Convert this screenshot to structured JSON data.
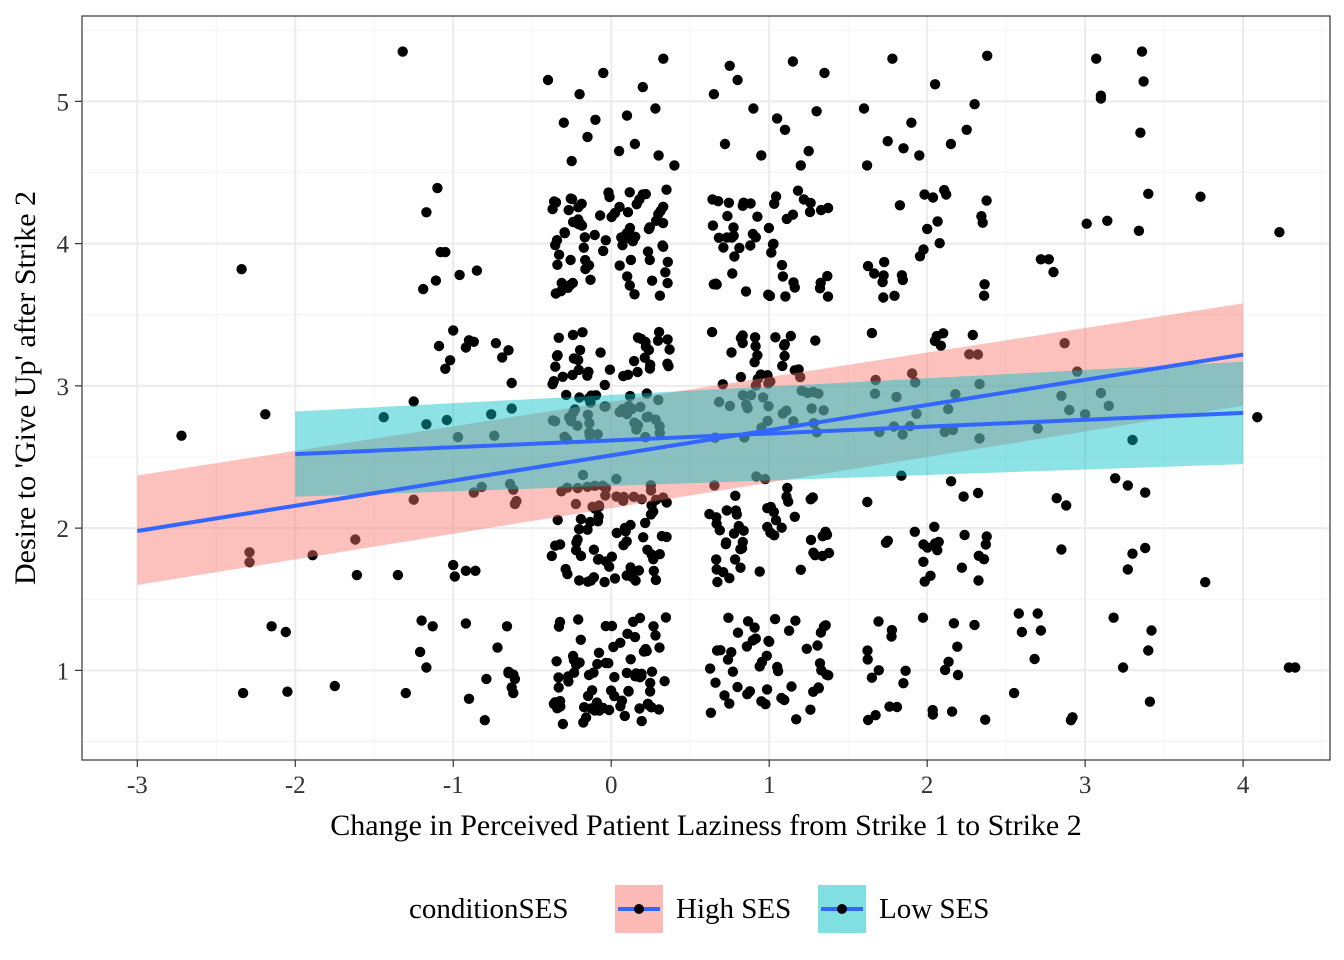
{
  "chart_data": {
    "type": "scatter",
    "xlabel": "Change in Perceived Patient Laziness from Strike 1 to Strike 2",
    "ylabel": "Desire to 'Give Up' after Strike 2",
    "xlim": [
      -3.35,
      4.55
    ],
    "ylim": [
      0.37,
      5.6
    ],
    "x_ticks": [
      -3,
      -2,
      -1,
      0,
      1,
      2,
      3,
      4
    ],
    "x_tick_labels": [
      "-3",
      "-2",
      "-1",
      "0",
      "1",
      "2",
      "3",
      "4"
    ],
    "y_ticks": [
      1,
      2,
      3,
      4,
      5
    ],
    "y_tick_labels": [
      "1",
      "2",
      "3",
      "4",
      "5"
    ],
    "grid": true,
    "legend": {
      "title": "conditionSES",
      "position": "bottom",
      "entries": [
        "High SES",
        "Low SES"
      ]
    },
    "colors": {
      "points": "#000000",
      "line": "#3366FF",
      "high_ses_band": "#F8766D",
      "low_ses_band": "#00BFC4",
      "panel_border": "#333333",
      "grid_major": "#EBEBEB",
      "grid_minor": "#F4F4F4"
    },
    "series": [
      {
        "name": "High SES",
        "fit": {
          "x": [
            -3,
            4
          ],
          "y": [
            1.98,
            3.22
          ]
        },
        "ci": {
          "x": [
            -3,
            4
          ],
          "lower": [
            1.6,
            2.86
          ],
          "upper": [
            2.37,
            3.58
          ]
        }
      },
      {
        "name": "Low SES",
        "fit": {
          "x": [
            -2,
            4
          ],
          "y": [
            2.52,
            2.81
          ]
        },
        "ci": {
          "x": [
            -2,
            4
          ],
          "lower": [
            2.22,
            2.45
          ],
          "upper": [
            2.82,
            3.17
          ]
        }
      }
    ],
    "points": [
      [
        -2.72,
        2.65
      ],
      [
        -2.34,
        3.82
      ],
      [
        -2.29,
        1.83
      ],
      [
        -2.29,
        1.76
      ],
      [
        -2.33,
        0.84
      ],
      [
        -2.19,
        2.8
      ],
      [
        -2.15,
        1.31
      ],
      [
        -2.06,
        1.27
      ],
      [
        -2.05,
        0.85
      ],
      [
        -1.89,
        1.81
      ],
      [
        -1.75,
        0.89
      ],
      [
        -1.62,
        1.92
      ],
      [
        -1.61,
        1.67
      ],
      [
        -1.44,
        2.78
      ],
      [
        -1.32,
        5.35
      ],
      [
        -1.35,
        1.67
      ],
      [
        -1.3,
        0.84
      ],
      [
        -1.25,
        2.2
      ],
      [
        -1.25,
        2.89
      ],
      [
        -1.21,
        1.13
      ],
      [
        -1.17,
        2.73
      ],
      [
        -1.19,
        3.68
      ],
      [
        -1.17,
        4.22
      ],
      [
        -1.2,
        1.35
      ],
      [
        -1.17,
        1.02
      ],
      [
        -1.13,
        1.31
      ],
      [
        -1.11,
        3.74
      ],
      [
        -1.1,
        4.39
      ],
      [
        -1.09,
        3.28
      ],
      [
        -1.08,
        3.94
      ],
      [
        -1.05,
        3.94
      ],
      [
        -1.04,
        2.76
      ],
      [
        -1.02,
        3.18
      ],
      [
        -1.0,
        3.39
      ],
      [
        -1.0,
        1.74
      ],
      [
        -0.99,
        1.66
      ],
      [
        -1.05,
        3.12
      ],
      [
        -0.97,
        2.64
      ],
      [
        -0.96,
        3.78
      ],
      [
        -0.92,
        3.27
      ],
      [
        -0.9,
        3.32
      ],
      [
        -0.92,
        1.33
      ],
      [
        -0.92,
        1.7
      ],
      [
        -0.87,
        2.25
      ],
      [
        -0.85,
        3.81
      ],
      [
        -0.9,
        0.8
      ],
      [
        -0.86,
        1.7
      ],
      [
        -0.87,
        3.31
      ],
      [
        -0.82,
        2.29
      ],
      [
        -0.8,
        0.65
      ],
      [
        -0.79,
        0.94
      ],
      [
        -0.76,
        2.8
      ],
      [
        -0.73,
        3.3
      ],
      [
        -0.74,
        2.65
      ],
      [
        -0.72,
        1.16
      ],
      [
        -0.69,
        3.2
      ],
      [
        -0.65,
        3.25
      ],
      [
        -0.65,
        0.98
      ],
      [
        -0.63,
        2.84
      ],
      [
        -0.64,
        2.31
      ],
      [
        -0.62,
        2.27
      ],
      [
        -0.61,
        2.17
      ],
      [
        -0.62,
        0.84
      ],
      [
        -0.63,
        3.02
      ],
      [
        -0.63,
        0.88
      ],
      [
        -0.61,
        0.94
      ],
      [
        -0.66,
        1.31
      ],
      [
        -0.65,
        0.99
      ],
      [
        -0.6,
        2.19
      ],
      [
        -0.62,
        0.97
      ],
      [
        2.7,
        1.4
      ],
      [
        2.72,
        1.28
      ],
      [
        2.68,
        1.08
      ],
      [
        2.7,
        2.7
      ],
      [
        2.72,
        3.89
      ],
      [
        2.77,
        3.89
      ],
      [
        2.8,
        3.8
      ],
      [
        2.82,
        2.21
      ],
      [
        2.85,
        2.93
      ],
      [
        2.85,
        1.85
      ],
      [
        2.88,
        2.16
      ],
      [
        2.87,
        3.3
      ],
      [
        2.9,
        2.83
      ],
      [
        2.91,
        0.65
      ],
      [
        2.92,
        0.67
      ],
      [
        3.01,
        4.14
      ],
      [
        3.07,
        5.3
      ],
      [
        3.1,
        5.02
      ],
      [
        3.1,
        5.04
      ],
      [
        3.14,
        4.16
      ],
      [
        3.15,
        2.86
      ],
      [
        3.18,
        1.37
      ],
      [
        3.24,
        1.02
      ],
      [
        3.27,
        1.71
      ],
      [
        3.27,
        2.3
      ],
      [
        3.3,
        1.82
      ],
      [
        3.34,
        4.09
      ],
      [
        3.35,
        4.78
      ],
      [
        3.36,
        5.35
      ],
      [
        3.37,
        5.14
      ],
      [
        3.38,
        1.86
      ],
      [
        3.38,
        2.25
      ],
      [
        3.4,
        4.35
      ],
      [
        3.41,
        0.78
      ],
      [
        3.42,
        1.28
      ],
      [
        3.4,
        1.14
      ],
      [
        3.73,
        4.33
      ],
      [
        3.76,
        1.62
      ],
      [
        4.09,
        2.78
      ],
      [
        4.23,
        4.08
      ],
      [
        4.29,
        1.02
      ],
      [
        4.33,
        1.02
      ],
      [
        2.55,
        0.84
      ],
      [
        2.58,
        1.4
      ],
      [
        2.6,
        1.27
      ],
      [
        3.0,
        2.8
      ],
      [
        3.19,
        2.35
      ],
      [
        3.3,
        2.62
      ],
      [
        3.1,
        2.95
      ],
      [
        2.95,
        3.1
      ],
      [
        -0.4,
        5.15
      ],
      [
        -0.3,
        4.85
      ],
      [
        -0.2,
        5.05
      ],
      [
        -0.15,
        4.75
      ],
      [
        -0.1,
        4.87
      ],
      [
        0.05,
        4.65
      ],
      [
        0.15,
        4.7
      ],
      [
        0.2,
        5.1
      ],
      [
        0.28,
        4.95
      ],
      [
        0.33,
        5.3
      ],
      [
        0.4,
        4.55
      ],
      [
        -0.05,
        5.2
      ],
      [
        0.3,
        4.62
      ],
      [
        -0.25,
        4.58
      ],
      [
        0.1,
        4.9
      ],
      [
        0.8,
        5.15
      ],
      [
        0.65,
        5.05
      ],
      [
        0.75,
        5.25
      ],
      [
        0.9,
        4.95
      ],
      [
        1.05,
        4.88
      ],
      [
        1.15,
        5.28
      ],
      [
        1.25,
        4.65
      ],
      [
        1.35,
        5.2
      ],
      [
        1.1,
        4.8
      ],
      [
        0.95,
        4.62
      ],
      [
        1.3,
        4.93
      ],
      [
        0.72,
        4.7
      ],
      [
        1.2,
        4.55
      ],
      [
        1.78,
        5.3
      ],
      [
        1.6,
        4.95
      ],
      [
        1.75,
        4.72
      ],
      [
        1.9,
        4.85
      ],
      [
        2.05,
        5.12
      ],
      [
        2.15,
        4.7
      ],
      [
        2.3,
        4.98
      ],
      [
        1.95,
        4.62
      ],
      [
        2.25,
        4.8
      ],
      [
        1.62,
        4.55
      ],
      [
        2.38,
        5.32
      ],
      [
        1.85,
        4.67
      ]
    ]
  }
}
